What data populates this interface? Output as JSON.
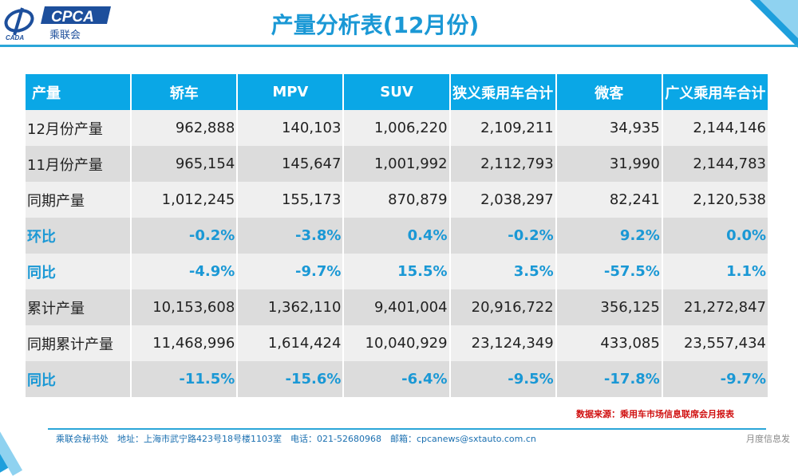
{
  "header": {
    "title": "产量分析表(12月份)",
    "logo_text": "CPCA",
    "logo_sub": "乘联会",
    "logo_small": "CADA"
  },
  "table": {
    "columns": [
      "产量",
      "轿车",
      "MPV",
      "SUV",
      "狭义乘用车合计",
      "微客",
      "广义乘用车合计"
    ],
    "rows": [
      [
        "12月份产量",
        "962,888",
        "140,103",
        "1,006,220",
        "2,109,211",
        "34,935",
        "2,144,146"
      ],
      [
        "11月份产量",
        "965,154",
        "145,647",
        "1,001,992",
        "2,112,793",
        "31,990",
        "2,144,783"
      ],
      [
        "同期产量",
        "1,012,245",
        "155,173",
        "870,879",
        "2,038,297",
        "82,241",
        "2,120,538"
      ],
      [
        "环比",
        "-0.2%",
        "-3.8%",
        "0.4%",
        "-0.2%",
        "9.2%",
        "0.0%"
      ],
      [
        "同比",
        "-4.9%",
        "-9.7%",
        "15.5%",
        "3.5%",
        "-57.5%",
        "1.1%"
      ],
      [
        "累计产量",
        "10,153,608",
        "1,362,110",
        "9,401,004",
        "20,916,722",
        "356,125",
        "21,272,847"
      ],
      [
        "同期累计产量",
        "11,468,996",
        "1,614,424",
        "10,040,929",
        "23,124,349",
        "433,085",
        "23,557,434"
      ],
      [
        "同比",
        "-11.5%",
        "-15.6%",
        "-6.4%",
        "-9.5%",
        "-17.8%",
        "-9.7%"
      ]
    ]
  },
  "source": "数据来源：乘用车市场信息联席会月报表",
  "footer": {
    "address": "乘联会秘书处　地址：上海市武宁路423号18号楼1103室　电话：021-52680968　邮箱：cpcanews@sxtauto.com.cn",
    "right": "月度信息发"
  }
}
